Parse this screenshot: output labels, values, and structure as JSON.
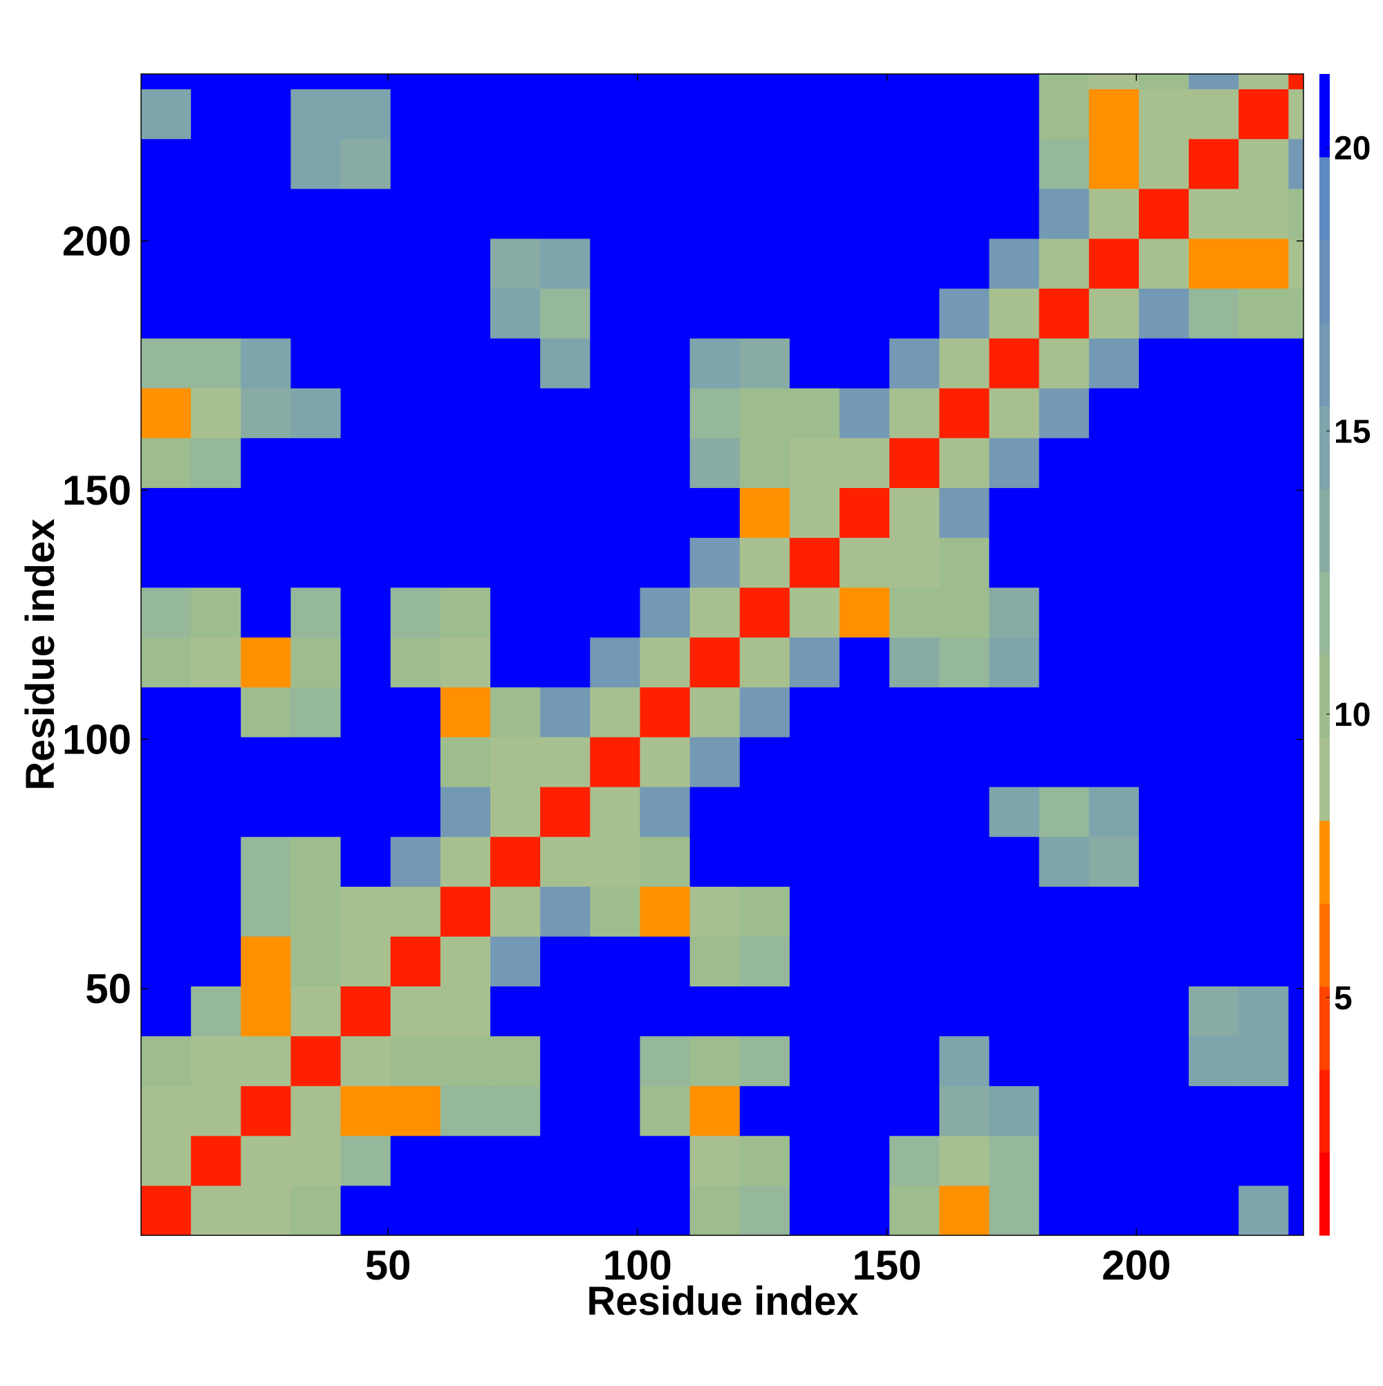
{
  "chart_data": {
    "type": "heatmap",
    "xlabel": "Residue index",
    "ylabel": "Residue index",
    "x_edges": [
      0.5,
      10.5,
      20.5,
      30.5,
      40.5,
      50.5,
      60.5,
      70.5,
      80.5,
      90.5,
      100.5,
      110.5,
      120.5,
      130.5,
      140.5,
      150.5,
      160.5,
      170.5,
      180.5,
      190.5,
      200.5,
      210.5,
      220.5,
      230.5,
      233.5
    ],
    "y_edges": [
      0.5,
      10.5,
      20.5,
      30.5,
      40.5,
      50.5,
      60.5,
      70.5,
      80.5,
      90.5,
      100.5,
      110.5,
      120.5,
      130.5,
      140.5,
      150.5,
      160.5,
      170.5,
      180.5,
      190.5,
      200.5,
      210.5,
      220.5,
      230.5,
      233.5
    ],
    "values": [
      [
        3,
        9,
        9,
        10,
        21,
        21,
        21,
        21,
        21,
        21,
        21,
        11,
        12,
        21,
        21,
        11,
        8,
        12,
        21,
        21,
        21,
        21,
        15,
        21
      ],
      [
        9,
        3,
        9,
        9,
        12,
        21,
        21,
        21,
        21,
        21,
        21,
        9,
        10,
        21,
        21,
        12,
        9,
        12,
        21,
        21,
        21,
        21,
        21,
        21
      ],
      [
        9,
        9,
        3,
        9,
        8,
        8,
        12,
        12,
        21,
        21,
        10,
        8,
        21,
        21,
        21,
        21,
        13,
        14,
        21,
        21,
        21,
        21,
        21,
        21
      ],
      [
        10,
        9,
        9,
        3,
        9,
        10,
        11,
        10,
        21,
        21,
        12,
        11,
        12,
        21,
        21,
        21,
        15,
        21,
        21,
        21,
        21,
        15,
        15,
        21
      ],
      [
        21,
        12,
        8,
        9,
        3,
        9,
        9,
        21,
        21,
        21,
        21,
        21,
        21,
        21,
        21,
        21,
        21,
        21,
        21,
        21,
        21,
        13,
        14,
        21
      ],
      [
        21,
        21,
        8,
        10,
        9,
        3,
        9,
        16,
        21,
        21,
        21,
        10,
        12,
        21,
        21,
        21,
        21,
        21,
        21,
        21,
        21,
        21,
        21,
        21
      ],
      [
        21,
        21,
        12,
        11,
        9,
        9,
        3,
        9,
        16,
        11,
        8,
        9,
        11,
        21,
        21,
        21,
        21,
        21,
        21,
        21,
        21,
        21,
        21,
        21
      ],
      [
        21,
        21,
        12,
        10,
        21,
        16,
        9,
        3,
        9,
        9,
        10,
        21,
        21,
        21,
        21,
        21,
        21,
        21,
        15,
        13,
        21,
        21,
        21,
        21
      ],
      [
        21,
        21,
        21,
        21,
        21,
        21,
        16,
        9,
        3,
        9,
        16,
        21,
        21,
        21,
        21,
        21,
        21,
        14,
        12,
        14,
        21,
        21,
        21,
        21
      ],
      [
        21,
        21,
        21,
        21,
        21,
        21,
        11,
        9,
        9,
        3,
        9,
        16,
        21,
        21,
        21,
        21,
        21,
        21,
        21,
        21,
        21,
        21,
        21,
        21
      ],
      [
        21,
        21,
        10,
        12,
        21,
        21,
        8,
        10,
        16,
        9,
        3,
        9,
        16,
        21,
        21,
        21,
        21,
        21,
        21,
        21,
        21,
        21,
        21,
        21
      ],
      [
        11,
        9,
        8,
        11,
        21,
        10,
        9,
        21,
        21,
        16,
        9,
        3,
        9,
        16,
        21,
        13,
        12,
        14,
        21,
        21,
        21,
        21,
        21,
        21
      ],
      [
        12,
        10,
        21,
        12,
        21,
        12,
        11,
        21,
        21,
        21,
        16,
        9,
        3,
        9,
        8,
        11,
        10,
        13,
        21,
        21,
        21,
        21,
        21,
        21
      ],
      [
        21,
        21,
        21,
        21,
        21,
        21,
        21,
        21,
        21,
        21,
        21,
        16,
        9,
        3,
        9,
        9,
        11,
        21,
        21,
        21,
        21,
        21,
        21,
        21
      ],
      [
        21,
        21,
        21,
        21,
        21,
        21,
        21,
        21,
        21,
        21,
        21,
        21,
        8,
        9,
        3,
        9,
        16,
        21,
        21,
        21,
        21,
        21,
        21,
        21
      ],
      [
        11,
        12,
        21,
        21,
        21,
        21,
        21,
        21,
        21,
        21,
        21,
        13,
        11,
        9,
        9,
        3,
        9,
        16,
        21,
        21,
        21,
        21,
        21,
        21
      ],
      [
        8,
        9,
        13,
        15,
        21,
        21,
        21,
        21,
        21,
        21,
        21,
        12,
        10,
        11,
        16,
        9,
        3,
        9,
        16,
        21,
        21,
        21,
        21,
        21
      ],
      [
        12,
        12,
        14,
        21,
        21,
        21,
        21,
        21,
        14,
        21,
        21,
        14,
        13,
        21,
        21,
        16,
        9,
        3,
        9,
        16,
        21,
        21,
        21,
        21
      ],
      [
        21,
        21,
        21,
        21,
        21,
        21,
        21,
        15,
        12,
        21,
        21,
        21,
        21,
        21,
        21,
        21,
        16,
        9,
        3,
        9,
        16,
        12,
        10,
        11
      ],
      [
        21,
        21,
        21,
        21,
        21,
        21,
        21,
        13,
        14,
        21,
        21,
        21,
        21,
        21,
        21,
        21,
        21,
        16,
        9,
        3,
        9,
        8,
        8,
        9
      ],
      [
        21,
        21,
        21,
        21,
        21,
        21,
        21,
        21,
        21,
        21,
        21,
        21,
        21,
        21,
        21,
        21,
        21,
        21,
        16,
        9,
        3,
        9,
        9,
        10
      ],
      [
        21,
        21,
        21,
        15,
        13,
        21,
        21,
        21,
        21,
        21,
        21,
        21,
        21,
        21,
        21,
        21,
        21,
        21,
        12,
        8,
        9,
        3,
        9,
        16
      ],
      [
        15,
        21,
        21,
        15,
        14,
        21,
        21,
        21,
        21,
        21,
        21,
        21,
        21,
        21,
        21,
        21,
        21,
        21,
        10,
        8,
        9,
        9,
        3,
        9
      ],
      [
        21,
        21,
        21,
        21,
        21,
        21,
        21,
        21,
        21,
        21,
        21,
        21,
        21,
        21,
        21,
        21,
        21,
        21,
        11,
        9,
        10,
        16,
        9,
        3
      ]
    ],
    "xlim": [
      0.5,
      233.5
    ],
    "ylim": [
      0.5,
      233.5
    ],
    "xticks": [
      50,
      100,
      150,
      200
    ],
    "yticks": [
      50,
      100,
      150,
      200
    ],
    "clim": [
      0.8,
      21.3
    ],
    "cticks": [
      5,
      10,
      15,
      20
    ],
    "colors": [
      "#ff0000",
      "#ff2000",
      "#ff4400",
      "#ff7000",
      "#ff9000",
      "#a8c090",
      "#9dbd8e",
      "#95b79a",
      "#88aca4",
      "#7ea4ac",
      "#7399b4",
      "#6a91ba",
      "#5e88c0",
      "#0000ff"
    ]
  }
}
